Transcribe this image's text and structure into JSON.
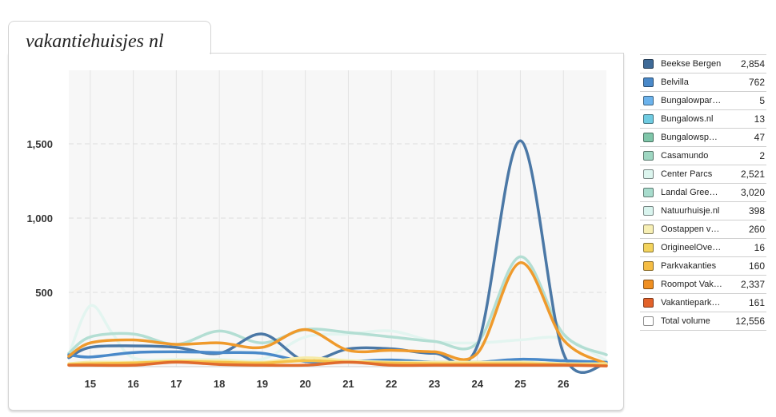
{
  "page": {
    "title": "vakantiehuisjes nl"
  },
  "colors": {
    "background": "#ffffff",
    "grid": "#e3e3e3",
    "plot_bg": "#f7f7f7"
  },
  "chart_data": {
    "type": "line",
    "title": "",
    "xlabel": "",
    "ylabel": "",
    "x": [
      15,
      16,
      17,
      18,
      19,
      20,
      21,
      22,
      23,
      24,
      25,
      26
    ],
    "xlim": [
      14.5,
      27
    ],
    "ylim": [
      0,
      1500
    ],
    "yticks": [
      500,
      1000,
      1500
    ],
    "ytick_labels": [
      "500",
      "1,000",
      "1,500"
    ],
    "grid": true,
    "series": [
      {
        "name": "Center Parcs",
        "color": "#e3f5f0",
        "x": [
          14.5,
          15,
          15.5,
          16,
          17,
          18,
          19,
          20,
          21,
          22,
          23,
          24,
          25,
          26,
          27
        ],
        "values": [
          80,
          410,
          230,
          60,
          50,
          50,
          50,
          200,
          220,
          240,
          170,
          160,
          180,
          190,
          40
        ]
      },
      {
        "name": "Landal Green Parks",
        "color": "#b3ded3",
        "x": [
          14.5,
          15,
          16,
          17,
          18,
          19,
          20,
          21,
          22,
          23,
          24,
          25,
          26,
          27
        ],
        "values": [
          90,
          200,
          220,
          150,
          240,
          160,
          250,
          230,
          200,
          170,
          160,
          740,
          220,
          80
        ]
      },
      {
        "name": "Beekse Bergen",
        "color": "#4b78a6",
        "x": [
          14.5,
          15,
          16,
          17,
          18,
          19,
          20,
          21,
          22,
          23,
          24,
          25,
          26,
          27
        ],
        "values": [
          60,
          130,
          140,
          130,
          90,
          220,
          40,
          120,
          120,
          90,
          140,
          1520,
          90,
          20
        ]
      },
      {
        "name": "Belvilla",
        "color": "#4a89c9",
        "x": [
          14.5,
          15,
          16,
          17,
          18,
          19,
          20,
          21,
          22,
          23,
          24,
          25,
          26,
          27
        ],
        "values": [
          80,
          65,
          95,
          100,
          95,
          90,
          35,
          35,
          45,
          30,
          30,
          50,
          40,
          30
        ]
      },
      {
        "name": "Roompot Vakanties",
        "color": "#ef9a2c",
        "x": [
          14.5,
          15,
          16,
          17,
          18,
          19,
          20,
          21,
          22,
          23,
          24,
          25,
          26,
          27
        ],
        "values": [
          70,
          160,
          180,
          150,
          160,
          130,
          250,
          110,
          110,
          100,
          90,
          700,
          180,
          20
        ]
      },
      {
        "name": "Oostappen vakantieparken",
        "color": "#f6eba8",
        "x": [
          14.5,
          15,
          16,
          17,
          18,
          19,
          20,
          21,
          22,
          23,
          24,
          25,
          26,
          27
        ],
        "values": [
          20,
          30,
          30,
          40,
          40,
          30,
          60,
          40,
          30,
          30,
          30,
          30,
          20,
          20
        ]
      },
      {
        "name": "Parkvakanties",
        "color": "#f5c24a",
        "x": [
          14.5,
          15,
          16,
          17,
          18,
          19,
          20,
          21,
          22,
          23,
          24,
          25,
          26,
          27
        ],
        "values": [
          15,
          20,
          25,
          35,
          30,
          25,
          40,
          30,
          25,
          20,
          20,
          20,
          15,
          10
        ]
      },
      {
        "name": "Vakantieparkenpagina",
        "color": "#e06b2d",
        "x": [
          14.5,
          15,
          16,
          17,
          18,
          19,
          20,
          21,
          22,
          23,
          24,
          25,
          26,
          27
        ],
        "values": [
          10,
          10,
          10,
          30,
          15,
          10,
          10,
          30,
          10,
          10,
          10,
          10,
          10,
          5
        ]
      }
    ]
  },
  "legend": {
    "items": [
      {
        "label": "Beekse Bergen",
        "value": "2,854",
        "color": "#3e6a97"
      },
      {
        "label": "Belvilla",
        "value": "762",
        "color": "#4a89c9"
      },
      {
        "label": "Bungalowpar…",
        "value": "5",
        "color": "#6cb3ec"
      },
      {
        "label": "Bungalows.nl",
        "value": "13",
        "color": "#6fcbe1"
      },
      {
        "label": "Bungalowsp…",
        "value": "47",
        "color": "#7fc6a9"
      },
      {
        "label": "Casamundo",
        "value": "2",
        "color": "#9fd7c2"
      },
      {
        "label": "Center Parcs",
        "value": "2,521",
        "color": "#dcf5ee"
      },
      {
        "label": "Landal Gree…",
        "value": "3,020",
        "color": "#a8dccd"
      },
      {
        "label": "Natuurhuisje.nl",
        "value": "398",
        "color": "#d9f4ee"
      },
      {
        "label": "Oostappen v…",
        "value": "260",
        "color": "#f7efb4"
      },
      {
        "label": "OrigineelOve…",
        "value": "16",
        "color": "#f3d35d"
      },
      {
        "label": "Parkvakanties",
        "value": "160",
        "color": "#f5bd44"
      },
      {
        "label": "Roompot Vak…",
        "value": "2,337",
        "color": "#ef8f22"
      },
      {
        "label": "Vakantiepark…",
        "value": "161",
        "color": "#e2622a"
      },
      {
        "label": "Total volume",
        "value": "12,556",
        "color": "#ffffff"
      }
    ]
  }
}
